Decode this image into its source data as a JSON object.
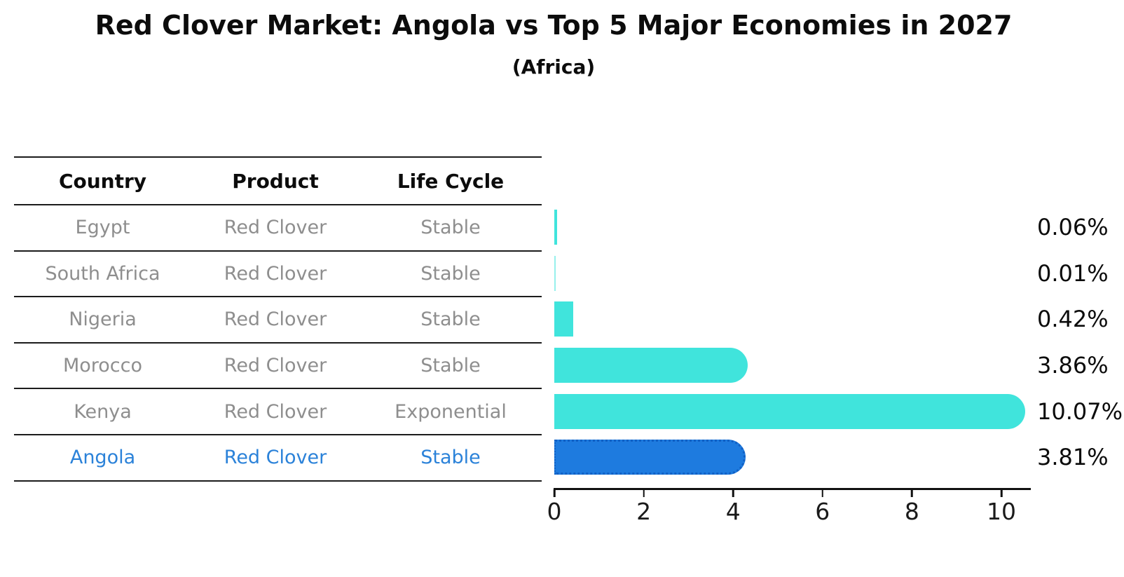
{
  "title": "Red Clover Market: Angola vs Top 5 Major Economies in 2027",
  "subtitle": "(Africa)",
  "table": {
    "headers": [
      "Country",
      "Product",
      "Life Cycle"
    ],
    "rows": [
      {
        "country": "Egypt",
        "product": "Red Clover",
        "life_cycle": "Stable",
        "highlight": false
      },
      {
        "country": "South Africa",
        "product": "Red Clover",
        "life_cycle": "Stable",
        "highlight": false
      },
      {
        "country": "Nigeria",
        "product": "Red Clover",
        "life_cycle": "Stable",
        "highlight": false
      },
      {
        "country": "Morocco",
        "product": "Red Clover",
        "life_cycle": "Stable",
        "highlight": false
      },
      {
        "country": "Kenya",
        "product": "Red Clover",
        "life_cycle": "Exponential",
        "highlight": false
      },
      {
        "country": "Angola",
        "product": "Red Clover",
        "life_cycle": "Stable",
        "highlight": true
      }
    ]
  },
  "chart_data": {
    "type": "bar",
    "orientation": "horizontal",
    "categories": [
      "Egypt",
      "South Africa",
      "Nigeria",
      "Morocco",
      "Kenya",
      "Angola"
    ],
    "values": [
      0.06,
      0.01,
      0.42,
      3.86,
      10.07,
      3.81
    ],
    "value_labels": [
      "0.06%",
      "0.01%",
      "0.42%",
      "3.86%",
      "10.07%",
      "3.81%"
    ],
    "x_ticks": [
      "0",
      "2",
      "4",
      "6",
      "8",
      "10"
    ],
    "x_tick_values": [
      0,
      2,
      4,
      6,
      8,
      10
    ],
    "xlim": [
      0,
      10.65
    ],
    "grid": false,
    "legend": "none",
    "highlight_index": 5,
    "bar_color": "#40e4dc",
    "highlight_bar_color": "#1e7bdf",
    "highlight_text_color": "#2b82d9",
    "axis_color": "#111111",
    "table_text_color": "#8e8e8e"
  }
}
